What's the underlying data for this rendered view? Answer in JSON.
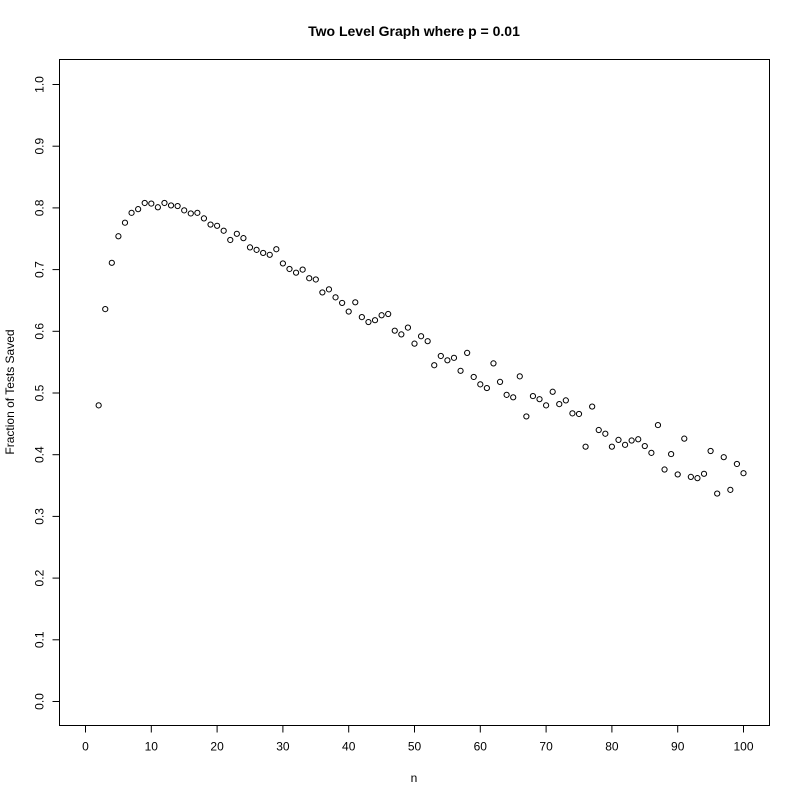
{
  "chart_data": {
    "type": "scatter",
    "title": "Two Level Graph where p = 0.01",
    "xlabel": "n",
    "ylabel": "Fraction of Tests Saved",
    "xlim": [
      0,
      103
    ],
    "ylim": [
      0,
      1.04
    ],
    "xticks": [
      0,
      10,
      20,
      30,
      40,
      50,
      60,
      70,
      80,
      90,
      100
    ],
    "yticks": [
      0.0,
      0.1,
      0.2,
      0.3,
      0.4,
      0.5,
      0.6,
      0.7,
      0.8,
      0.9,
      1.0
    ],
    "xtick_labels": [
      "0",
      "10",
      "20",
      "30",
      "40",
      "50",
      "60",
      "70",
      "80",
      "90",
      "100"
    ],
    "ytick_labels": [
      "0.0",
      "0.1",
      "0.2",
      "0.3",
      "0.4",
      "0.5",
      "0.6",
      "0.7",
      "0.8",
      "0.9",
      "1.0"
    ],
    "grid": false,
    "legend": "none",
    "marker": "open-circle",
    "x": [
      2,
      3,
      4,
      5,
      6,
      7,
      8,
      9,
      10,
      11,
      12,
      13,
      14,
      15,
      16,
      17,
      18,
      19,
      20,
      21,
      22,
      23,
      24,
      25,
      26,
      27,
      28,
      29,
      30,
      31,
      32,
      33,
      34,
      35,
      36,
      37,
      38,
      39,
      40,
      41,
      42,
      43,
      44,
      45,
      46,
      47,
      48,
      49,
      50,
      51,
      52,
      53,
      54,
      55,
      56,
      57,
      58,
      59,
      60,
      61,
      62,
      63,
      64,
      65,
      66,
      67,
      68,
      69,
      70,
      71,
      72,
      73,
      74,
      75,
      76,
      77,
      78,
      79,
      80,
      81,
      82,
      83,
      84,
      85,
      86,
      87,
      88,
      89,
      90,
      91,
      92,
      93,
      94,
      95,
      96,
      97,
      98,
      99,
      100
    ],
    "y": [
      0.48,
      0.636,
      0.711,
      0.754,
      0.776,
      0.792,
      0.798,
      0.808,
      0.807,
      0.801,
      0.808,
      0.804,
      0.803,
      0.796,
      0.791,
      0.792,
      0.783,
      0.773,
      0.771,
      0.763,
      0.748,
      0.758,
      0.751,
      0.736,
      0.732,
      0.727,
      0.724,
      0.733,
      0.71,
      0.701,
      0.695,
      0.7,
      0.686,
      0.684,
      0.663,
      0.668,
      0.655,
      0.646,
      0.632,
      0.647,
      0.623,
      0.615,
      0.618,
      0.626,
      0.628,
      0.601,
      0.595,
      0.606,
      0.58,
      0.592,
      0.584,
      0.545,
      0.56,
      0.553,
      0.557,
      0.536,
      0.565,
      0.526,
      0.514,
      0.508,
      0.548,
      0.518,
      0.497,
      0.493,
      0.527,
      0.462,
      0.495,
      0.49,
      0.48,
      0.502,
      0.482,
      0.488,
      0.467,
      0.466,
      0.413,
      0.478,
      0.44,
      0.434,
      0.413,
      0.424,
      0.416,
      0.423,
      0.425,
      0.414,
      0.403,
      0.448,
      0.376,
      0.401,
      0.368,
      0.426,
      0.364,
      0.362,
      0.369,
      0.406,
      0.337,
      0.396,
      0.343,
      0.385,
      0.37
    ]
  }
}
